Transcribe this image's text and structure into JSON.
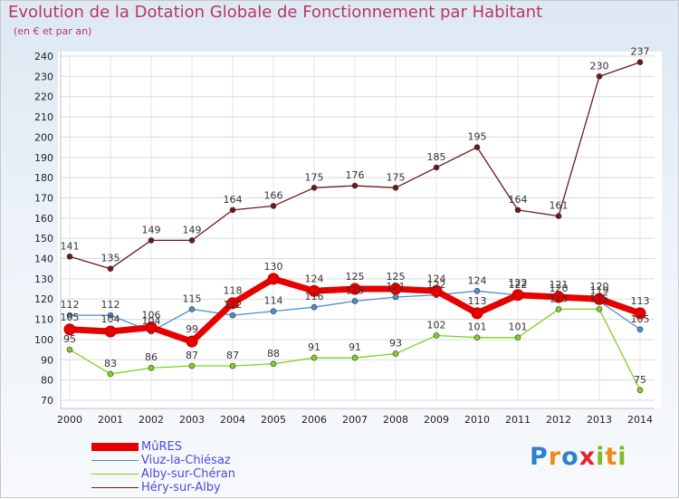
{
  "title": "Evolution de la Dotation Globale de Fonctionnement par Habitant",
  "subtitle": "(en € et par an)",
  "brand": {
    "letters": [
      "P",
      "r",
      "o",
      "x",
      "i",
      "t",
      "i"
    ],
    "colors": [
      "#2e7fd0",
      "#f08a1c",
      "#2e7fd0",
      "#e8222a",
      "#7abf28",
      "#f08a1c",
      "#7abf28"
    ]
  },
  "chart_data": {
    "type": "line",
    "title": "Evolution de la Dotation Globale de Fonctionnement par Habitant",
    "subtitle": "(en € et par an)",
    "xlabel": "",
    "ylabel": "",
    "ylim": [
      70,
      240
    ],
    "yticks": [
      70,
      80,
      90,
      100,
      110,
      120,
      130,
      140,
      150,
      160,
      170,
      180,
      190,
      200,
      210,
      220,
      230,
      240
    ],
    "categories": [
      "2000",
      "2001",
      "2002",
      "2003",
      "2004",
      "2005",
      "2006",
      "2007",
      "2008",
      "2009",
      "2010",
      "2011",
      "2012",
      "2013",
      "2014"
    ],
    "legend_position": "bottom-left",
    "series": [
      {
        "name": "MûRES",
        "color": "#e60000",
        "values": [
          105,
          104,
          106,
          99,
          118,
          130,
          124,
          125,
          125,
          124,
          113,
          122,
          121,
          120,
          113
        ]
      },
      {
        "name": "Viuz-la-Chiésaz",
        "color": "#4a8fd0",
        "values": [
          112,
          112,
          104,
          115,
          112,
          114,
          116,
          119,
          121,
          122,
          124,
          122,
          120,
          119,
          105
        ]
      },
      {
        "name": "Alby-sur-Chéran",
        "color": "#7ed321",
        "values": [
          95,
          83,
          86,
          87,
          87,
          88,
          91,
          91,
          93,
          102,
          101,
          101,
          115,
          115,
          75
        ]
      },
      {
        "name": "Héry-sur-Alby",
        "color": "#6b1a1a",
        "values": [
          141,
          135,
          149,
          149,
          164,
          166,
          175,
          176,
          175,
          185,
          195,
          164,
          161,
          230,
          237
        ]
      }
    ]
  }
}
